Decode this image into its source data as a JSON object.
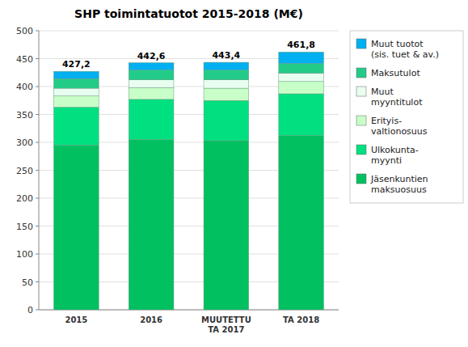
{
  "chart_data": {
    "type": "bar",
    "title": "SHP toimintatuotot 2015-2018 (M€)",
    "categories": [
      "2015",
      "2016",
      "MUUTETTU\nTA 2017",
      "TA 2018"
    ],
    "series": [
      {
        "name": "Jäsenkuntien\nmaksuosuus",
        "color": "#00c060",
        "values": [
          295.0,
          305.0,
          303.0,
          312.0
        ]
      },
      {
        "name": "Ulkokunta-\nmyynti",
        "color": "#00e080",
        "values": [
          68.0,
          72.0,
          72.0,
          75.0
        ]
      },
      {
        "name": "Erityis-\nvaltionosuus",
        "color": "#c8ffc8",
        "values": [
          20.0,
          21.0,
          22.0,
          22.0
        ]
      },
      {
        "name": "Muut\nmyyntitulot",
        "color": "#e8fff0",
        "values": [
          14.0,
          14.0,
          15.0,
          15.0
        ]
      },
      {
        "name": "Maksutulot",
        "color": "#22cc88",
        "values": [
          17.0,
          17.5,
          17.5,
          17.5
        ]
      },
      {
        "name": "Muut tuotot\n(sis. tuet & av.)",
        "color": "#00b0f0",
        "values": [
          13.2,
          13.1,
          13.9,
          20.3
        ]
      }
    ],
    "stacked": true,
    "totals": [
      427.2,
      442.6,
      443.4,
      461.8
    ],
    "total_labels": [
      "427,2",
      "442,6",
      "443,4",
      "461,8"
    ],
    "ylim": [
      0,
      500
    ],
    "yticks": [
      0,
      50,
      100,
      150,
      200,
      250,
      300,
      350,
      400,
      450,
      500
    ],
    "grid": true,
    "legend": "right"
  }
}
